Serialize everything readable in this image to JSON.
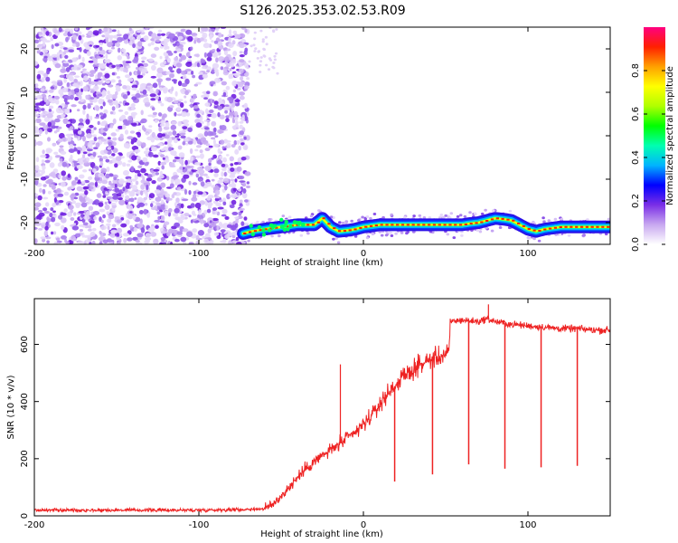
{
  "figure": {
    "title": "S126.2025.353.02.53.R09"
  },
  "chart_data": [
    {
      "type": "heatmap",
      "xlabel": "Height of straight line (km)",
      "ylabel": "Frequency (Hz)",
      "xlim": [
        -200,
        150
      ],
      "ylim": [
        -25,
        25
      ],
      "xticks": [
        -200,
        -100,
        0,
        100
      ],
      "yticks": [
        -20,
        -10,
        0,
        10,
        20
      ],
      "colorbar": {
        "label": "Normalized spectral amplitude",
        "range": [
          0,
          1
        ],
        "ticks": [
          "0.0",
          "0.2",
          "0.4",
          "0.6",
          "0.8"
        ],
        "colors": [
          "#ffffff",
          "#c8a8f0",
          "#7a2ee6",
          "#0000ff",
          "#00b4ff",
          "#00ffb0",
          "#00ff00",
          "#b0ff00",
          "#ffff00",
          "#ffa000",
          "#ff2000",
          "#ff0080"
        ]
      },
      "noise_region": {
        "x": [
          -200,
          -70
        ],
        "freq": [
          -25,
          25
        ],
        "amplitude": "low-medium"
      },
      "signal_trace": {
        "x": [
          -73,
          -68,
          -60,
          -50,
          -40,
          -30,
          -25,
          -20,
          -15,
          -10,
          -5,
          0,
          10,
          20,
          30,
          40,
          50,
          60,
          65,
          70,
          75,
          80,
          85,
          90,
          95,
          100,
          105,
          110,
          120,
          130,
          140,
          150
        ],
        "freq": [
          -22.5,
          -22,
          -21.5,
          -21,
          -20.5,
          -20.5,
          -19,
          -21,
          -22,
          -21.8,
          -21.5,
          -21,
          -20.5,
          -20.5,
          -20.5,
          -20.5,
          -20.5,
          -20.5,
          -20.2,
          -20,
          -19.5,
          -19,
          -19.2,
          -19.5,
          -20.5,
          -21.5,
          -22,
          -21.5,
          -21,
          -21,
          -21,
          -21
        ]
      }
    },
    {
      "type": "line",
      "xlabel": "Height of straight line (km)",
      "ylabel": "SNR (10 * v/v)",
      "xlim": [
        -200,
        150
      ],
      "ylim": [
        0,
        760
      ],
      "xticks": [
        -200,
        -100,
        0,
        100
      ],
      "yticks": [
        0,
        200,
        400,
        600
      ],
      "series": [
        {
          "color": "#ee2222",
          "x": [
            -200,
            -150,
            -100,
            -75,
            -60,
            -55,
            -50,
            -45,
            -40,
            -35,
            -30,
            -25,
            -20,
            -15,
            -10,
            -5,
            0,
            5,
            10,
            15,
            20,
            25,
            30,
            35,
            40,
            45,
            50,
            52,
            53,
            60,
            70,
            75,
            80,
            90,
            100,
            110,
            120,
            130,
            140,
            150
          ],
          "y": [
            20,
            20,
            20,
            22,
            25,
            40,
            70,
            100,
            135,
            165,
            190,
            210,
            230,
            250,
            270,
            290,
            320,
            350,
            390,
            430,
            460,
            490,
            510,
            530,
            545,
            555,
            565,
            570,
            680,
            685,
            680,
            690,
            680,
            670,
            665,
            660,
            655,
            655,
            650,
            650
          ],
          "spikes_down": [
            {
              "x": 19,
              "y": 120
            },
            {
              "x": 42,
              "y": 145
            },
            {
              "x": 64,
              "y": 180
            },
            {
              "x": 86,
              "y": 165
            },
            {
              "x": 108,
              "y": 170
            },
            {
              "x": 130,
              "y": 175
            }
          ],
          "spikes_up": [
            {
              "x": -14,
              "y": 530
            },
            {
              "x": 76,
              "y": 740
            }
          ]
        }
      ]
    }
  ]
}
